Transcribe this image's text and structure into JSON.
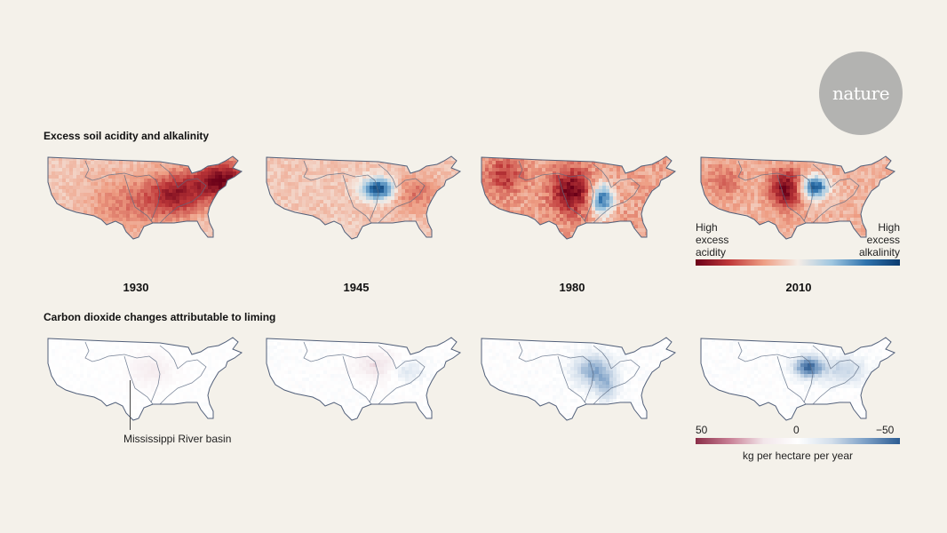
{
  "brand": {
    "logo_text": "nature"
  },
  "sections": {
    "acidity_title": "Excess soil acidity and alkalinity",
    "co2_title": "Carbon dioxide changes attributable to liming"
  },
  "years": [
    "1930",
    "1945",
    "1980",
    "2010"
  ],
  "acidity_legend": {
    "left_label": [
      "High",
      "excess",
      "acidity"
    ],
    "right_label": [
      "High",
      "excess",
      "alkalinity"
    ],
    "colors": [
      "#6b0018",
      "#c0393a",
      "#ee9e84",
      "#f5ede6",
      "#9fc6e0",
      "#2f73ad",
      "#0b3b6e"
    ]
  },
  "co2_legend": {
    "tick_left": "50",
    "tick_mid": "0",
    "tick_right": "−50",
    "unit": "kg per hectare per year",
    "colors": [
      "#8a2e48",
      "#c87f95",
      "#f2e6ea",
      "#ffffff",
      "#d2deeb",
      "#7b9fc6",
      "#2d5c92"
    ]
  },
  "annotation": {
    "basin_label": "Mississippi River basin"
  }
}
